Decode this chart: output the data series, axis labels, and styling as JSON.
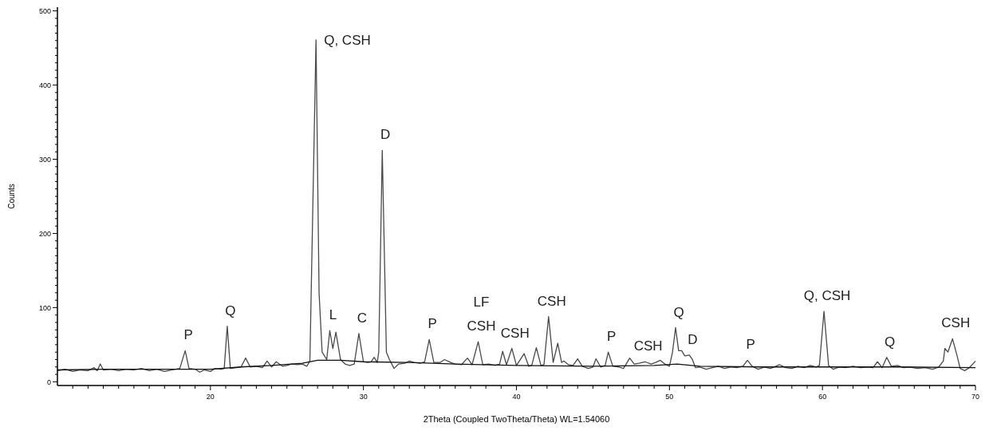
{
  "chart_data": {
    "type": "line",
    "xlabel": "2Theta (Coupled TwoTheta/Theta) WL=1.54060",
    "ylabel": "Counts",
    "xlim": [
      10,
      70
    ],
    "ylim": [
      -5,
      505
    ],
    "xticks": [
      {
        "value": 11,
        "label": null
      },
      {
        "value": 12,
        "label": null
      },
      {
        "value": 13,
        "label": null
      },
      {
        "value": 14,
        "label": null
      },
      {
        "value": 15,
        "label": null
      },
      {
        "value": 16,
        "label": null
      },
      {
        "value": 17,
        "label": null
      },
      {
        "value": 18,
        "label": null
      },
      {
        "value": 19,
        "label": null
      },
      20,
      {
        "value": 21,
        "label": null
      },
      {
        "value": 22,
        "label": null
      },
      {
        "value": 23,
        "label": null
      },
      {
        "value": 24,
        "label": null
      },
      {
        "value": 25,
        "label": null
      },
      {
        "value": 26,
        "label": null
      },
      {
        "value": 27,
        "label": null
      },
      {
        "value": 28,
        "label": null
      },
      {
        "value": 29,
        "label": null
      },
      30,
      {
        "value": 31,
        "label": null
      },
      {
        "value": 32,
        "label": null
      },
      {
        "value": 33,
        "label": null
      },
      {
        "value": 34,
        "label": null
      },
      {
        "value": 35,
        "label": null
      },
      {
        "value": 36,
        "label": null
      },
      {
        "value": 37,
        "label": null
      },
      {
        "value": 38,
        "label": null
      },
      {
        "value": 39,
        "label": null
      },
      40,
      {
        "value": 41,
        "label": null
      },
      {
        "value": 42,
        "label": null
      },
      {
        "value": 43,
        "label": null
      },
      {
        "value": 44,
        "label": null
      },
      {
        "value": 45,
        "label": null
      },
      {
        "value": 46,
        "label": null
      },
      {
        "value": 47,
        "label": null
      },
      {
        "value": 48,
        "label": null
      },
      {
        "value": 49,
        "label": null
      },
      50,
      {
        "value": 51,
        "label": null
      },
      {
        "value": 52,
        "label": null
      },
      {
        "value": 53,
        "label": null
      },
      {
        "value": 54,
        "label": null
      },
      {
        "value": 55,
        "label": null
      },
      {
        "value": 56,
        "label": null
      },
      {
        "value": 57,
        "label": null
      },
      {
        "value": 58,
        "label": null
      },
      {
        "value": 59,
        "label": null
      },
      60,
      {
        "value": 61,
        "label": null
      },
      {
        "value": 62,
        "label": null
      },
      {
        "value": 63,
        "label": null
      },
      {
        "value": 64,
        "label": null
      },
      {
        "value": 65,
        "label": null
      },
      {
        "value": 66,
        "label": null
      },
      {
        "value": 67,
        "label": null
      },
      {
        "value": 68,
        "label": null
      },
      {
        "value": 69,
        "label": null
      },
      70
    ],
    "yticks": [
      0,
      {
        "value": 10,
        "label": null
      },
      {
        "value": 20,
        "label": null
      },
      {
        "value": 30,
        "label": null
      },
      {
        "value": 40,
        "label": null
      },
      {
        "value": 50,
        "label": null
      },
      {
        "value": 60,
        "label": null
      },
      {
        "value": 70,
        "label": null
      },
      {
        "value": 80,
        "label": null
      },
      {
        "value": 90,
        "label": null
      },
      100,
      {
        "value": 110,
        "label": null
      },
      {
        "value": 120,
        "label": null
      },
      {
        "value": 130,
        "label": null
      },
      {
        "value": 140,
        "label": null
      },
      {
        "value": 150,
        "label": null
      },
      {
        "value": 160,
        "label": null
      },
      {
        "value": 170,
        "label": null
      },
      {
        "value": 180,
        "label": null
      },
      {
        "value": 190,
        "label": null
      },
      200,
      {
        "value": 210,
        "label": null
      },
      {
        "value": 220,
        "label": null
      },
      {
        "value": 230,
        "label": null
      },
      {
        "value": 240,
        "label": null
      },
      {
        "value": 250,
        "label": null
      },
      {
        "value": 260,
        "label": null
      },
      {
        "value": 270,
        "label": null
      },
      {
        "value": 280,
        "label": null
      },
      {
        "value": 290,
        "label": null
      },
      300,
      {
        "value": 310,
        "label": null
      },
      {
        "value": 320,
        "label": null
      },
      {
        "value": 330,
        "label": null
      },
      {
        "value": 340,
        "label": null
      },
      {
        "value": 350,
        "label": null
      },
      {
        "value": 360,
        "label": null
      },
      {
        "value": 370,
        "label": null
      },
      {
        "value": 380,
        "label": null
      },
      {
        "value": 390,
        "label": null
      },
      400,
      {
        "value": 410,
        "label": null
      },
      {
        "value": 420,
        "label": null
      },
      {
        "value": 430,
        "label": null
      },
      {
        "value": 440,
        "label": null
      },
      {
        "value": 450,
        "label": null
      },
      {
        "value": 460,
        "label": null
      },
      {
        "value": 470,
        "label": null
      },
      {
        "value": 480,
        "label": null
      },
      {
        "value": 490,
        "label": null
      },
      500
    ],
    "series": [
      {
        "color": "#4a4a4a",
        "x": [
          10,
          10.5,
          11,
          11.5,
          12,
          12.4,
          12.6,
          12.8,
          13,
          13.5,
          14,
          14.5,
          15,
          15.5,
          16,
          16.5,
          17,
          17.5,
          18,
          18.35,
          18.6,
          19,
          19.3,
          19.6,
          20,
          20.3,
          20.7,
          20.9,
          21.1,
          21.3,
          21.7,
          22,
          22.3,
          22.6,
          23,
          23.4,
          23.7,
          24,
          24.3,
          24.7,
          25,
          25.3,
          25.7,
          26,
          26.3,
          26.5,
          26.9,
          27.1,
          27.3,
          27.6,
          27.8,
          28,
          28.2,
          28.5,
          28.8,
          29.1,
          29.4,
          29.7,
          30,
          30.3,
          30.5,
          30.7,
          30.9,
          31,
          31.23,
          31.5,
          31.7,
          32,
          32.3,
          32.7,
          33,
          33.3,
          33.7,
          34,
          34.3,
          34.6,
          35,
          35.3,
          35.7,
          36,
          36.4,
          36.8,
          37.1,
          37.5,
          37.8,
          38.2,
          38.6,
          38.9,
          39.1,
          39.35,
          39.7,
          40,
          40.5,
          40.8,
          41,
          41.3,
          41.6,
          41.8,
          42.1,
          42.4,
          42.7,
          42.95,
          43.1,
          43.4,
          43.7,
          44,
          44.3,
          44.7,
          45,
          45.2,
          45.5,
          45.8,
          46,
          46.3,
          46.7,
          47,
          47.4,
          47.7,
          48,
          48.4,
          48.8,
          49.1,
          49.4,
          49.7,
          50,
          50.2,
          50.4,
          50.6,
          50.8,
          51,
          51.3,
          51.5,
          51.7,
          52,
          52.4,
          52.8,
          53.2,
          53.6,
          54,
          54.4,
          54.8,
          55.1,
          55.4,
          55.8,
          56.2,
          56.6,
          57.2,
          57.6,
          58,
          58.4,
          58.8,
          59.2,
          59.6,
          59.8,
          60.1,
          60.4,
          60.7,
          61.1,
          61.5,
          62,
          62.5,
          63,
          63.3,
          63.6,
          63.9,
          64.2,
          64.5,
          64.9,
          65.3,
          65.7,
          66.2,
          66.7,
          67.2,
          67.6,
          67.9,
          68,
          68.2,
          68.5,
          68.8,
          69,
          69.3,
          69.6,
          70
        ],
        "values": [
          15,
          17,
          14,
          16,
          15,
          19,
          15,
          24,
          16,
          17,
          15,
          17,
          16,
          18,
          15,
          17,
          14,
          16,
          18,
          42,
          18,
          17,
          13,
          16,
          14,
          18,
          17,
          18,
          75,
          18,
          19,
          20,
          32,
          20,
          21,
          19,
          28,
          20,
          27,
          21,
          22,
          24,
          23,
          24,
          21,
          28,
          461,
          120,
          40,
          30,
          69,
          45,
          67,
          30,
          24,
          22,
          24,
          65,
          27,
          26,
          27,
          33,
          26,
          40,
          312,
          40,
          30,
          18,
          24,
          25,
          28,
          26,
          25,
          27,
          57,
          26,
          26,
          30,
          26,
          24,
          23,
          32,
          23,
          54,
          23,
          24,
          22,
          24,
          41,
          23,
          45,
          22,
          38,
          21,
          22,
          46,
          22,
          23,
          88,
          26,
          52,
          26,
          28,
          23,
          22,
          31,
          21,
          18,
          20,
          31,
          20,
          22,
          40,
          21,
          20,
          18,
          32,
          24,
          25,
          27,
          24,
          26,
          29,
          24,
          21,
          40,
          73,
          42,
          42,
          35,
          36,
          30,
          19,
          20,
          17,
          19,
          21,
          18,
          20,
          19,
          21,
          29,
          21,
          17,
          20,
          18,
          23,
          19,
          18,
          21,
          19,
          22,
          20,
          22,
          95,
          22,
          17,
          20,
          19,
          21,
          19,
          20,
          19,
          27,
          19,
          33,
          21,
          22,
          19,
          20,
          18,
          19,
          17,
          20,
          28,
          45,
          40,
          58,
          35,
          18,
          15,
          19,
          28
        ]
      },
      {
        "color": "#111111",
        "x": [
          10,
          13,
          17,
          20,
          22,
          24,
          26,
          27,
          28.5,
          30,
          33,
          36,
          40,
          45,
          49,
          50.5,
          52,
          56,
          60,
          65,
          70
        ],
        "values": [
          16,
          17,
          17,
          17,
          20,
          22,
          25,
          29,
          29,
          27,
          26,
          24,
          22,
          21,
          22,
          24,
          21,
          20,
          20,
          20,
          19
        ]
      }
    ],
    "annotations": [
      {
        "text": "P",
        "x": 18.35,
        "y": 42
      },
      {
        "text": "Q",
        "x": 21.1,
        "y": 75
      },
      {
        "text": "Q, CSH",
        "x": 26.9,
        "y": 461
      },
      {
        "text": "L",
        "x": 27.8,
        "y": 69
      },
      {
        "text": "C",
        "x": 29.7,
        "y": 65
      },
      {
        "text": "D",
        "x": 31.23,
        "y": 312
      },
      {
        "text": "P",
        "x": 34.3,
        "y": 57
      },
      {
        "text": "LF",
        "x": 37.5,
        "y": 54
      },
      {
        "text": "CSH",
        "x": 37.5,
        "y": 54
      },
      {
        "text": "CSH",
        "x": 39.7,
        "y": 45
      },
      {
        "text": "CSH",
        "x": 42.1,
        "y": 88
      },
      {
        "text": "P",
        "x": 46.0,
        "y": 40
      },
      {
        "text": "CSH",
        "x": 48.4,
        "y": 27
      },
      {
        "text": "Q",
        "x": 50.4,
        "y": 73
      },
      {
        "text": "D",
        "x": 51.3,
        "y": 36
      },
      {
        "text": "P",
        "x": 55.1,
        "y": 29
      },
      {
        "text": "Q, CSH",
        "x": 60.1,
        "y": 95
      },
      {
        "text": "Q",
        "x": 64.2,
        "y": 33
      },
      {
        "text": "CSH",
        "x": 68.5,
        "y": 58
      }
    ],
    "grid": false,
    "line_style": "solid",
    "marker": "none"
  }
}
